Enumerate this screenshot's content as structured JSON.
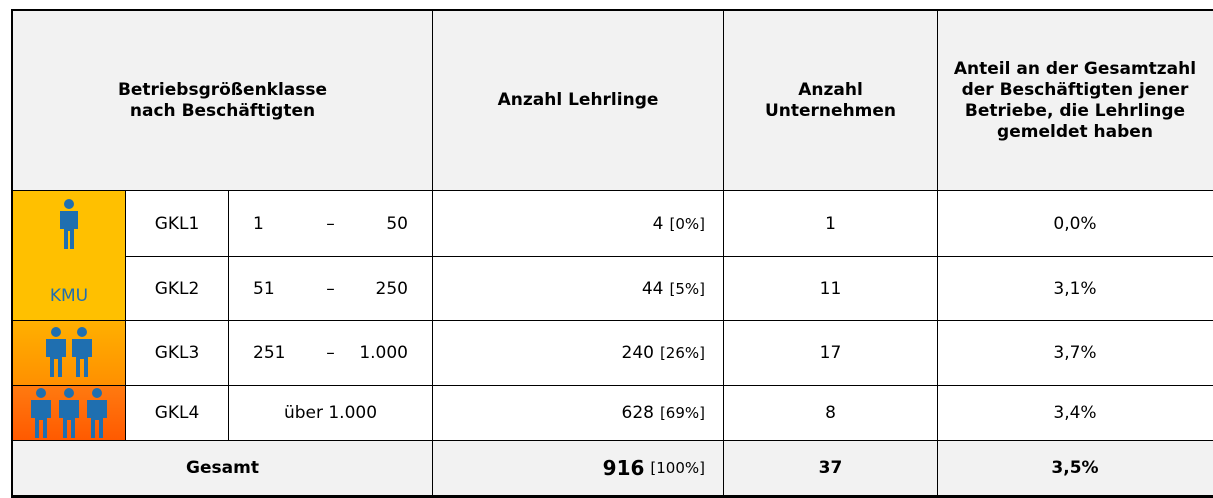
{
  "header": {
    "size_class": "Betriebsgrößenklasse nach Beschäftigten",
    "apprentices": "Anzahl Lehrlinge",
    "companies": "Anzahl Unternehmen",
    "share": "Anteil an der Gesamtzahl der Beschäftigten jener Betriebe, die Lehrlinge gemeldet haben"
  },
  "kmu_label": "KMU",
  "rows": [
    {
      "class": "GKL1",
      "range": [
        "1",
        "–",
        "50"
      ],
      "apprentices": "4",
      "apprentices_share": "[0%]",
      "companies": "1",
      "share": "0,0%"
    },
    {
      "class": "GKL2",
      "range": [
        "51",
        "–",
        "250"
      ],
      "apprentices": "44",
      "apprentices_share": "[5%]",
      "companies": "11",
      "share": "3,1%"
    },
    {
      "class": "GKL3",
      "range": [
        "251",
        "–",
        "1.000"
      ],
      "apprentices": "240",
      "apprentices_share": "[26%]",
      "companies": "17",
      "share": "3,7%"
    },
    {
      "class": "GKL4",
      "range": [
        "über 1.000"
      ],
      "apprentices": "628",
      "apprentices_share": "[69%]",
      "companies": "8",
      "share": "3,4%"
    }
  ],
  "total": {
    "label": "Gesamt",
    "apprentices": "916",
    "apprentices_share": "[100%]",
    "companies": "37",
    "share": "3,5%"
  }
}
